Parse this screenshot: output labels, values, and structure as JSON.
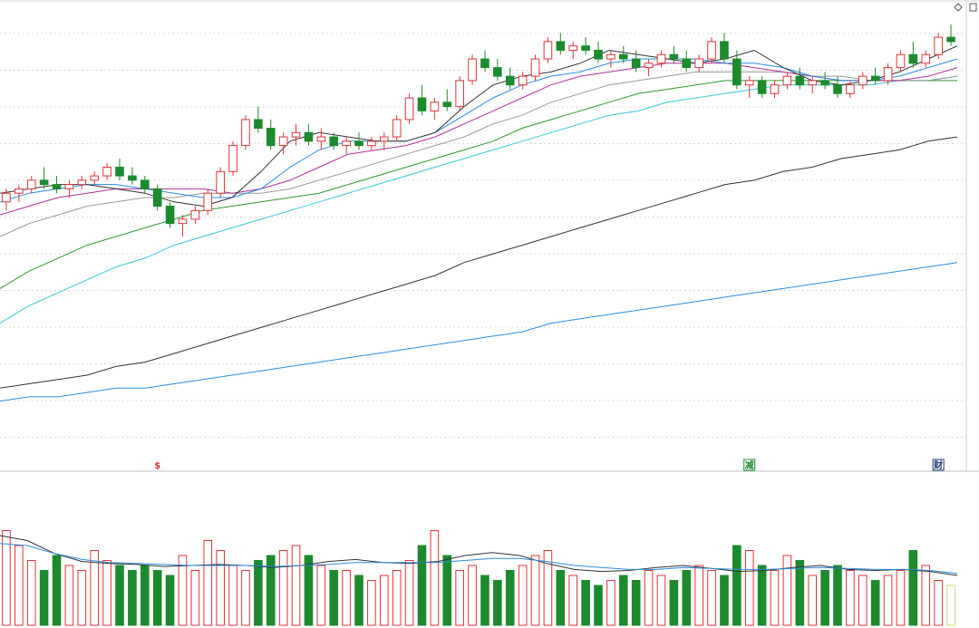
{
  "chart_data": [
    {
      "type": "candlestick",
      "panel": "price",
      "title": "",
      "grid": true,
      "ylim": [
        0,
        1
      ],
      "colors": {
        "up": "#e0333a",
        "down": "#1d8a2e",
        "ma5": "#333333",
        "ma10": "#2a8de0",
        "ma20": "#b0309a",
        "ma30": "#9a9a9a",
        "ma60": "#2e9a2e",
        "ma90": "#36c9d6",
        "ma250": "#333333",
        "ma500": "#2a8de0"
      },
      "ohlc": [
        [
          0.58,
          0.61,
          0.56,
          0.6
        ],
        [
          0.6,
          0.62,
          0.58,
          0.61
        ],
        [
          0.61,
          0.64,
          0.6,
          0.63
        ],
        [
          0.63,
          0.66,
          0.61,
          0.62
        ],
        [
          0.62,
          0.64,
          0.6,
          0.61
        ],
        [
          0.61,
          0.63,
          0.59,
          0.62
        ],
        [
          0.62,
          0.64,
          0.61,
          0.63
        ],
        [
          0.63,
          0.65,
          0.62,
          0.64
        ],
        [
          0.64,
          0.67,
          0.63,
          0.66
        ],
        [
          0.66,
          0.68,
          0.63,
          0.64
        ],
        [
          0.64,
          0.66,
          0.62,
          0.63
        ],
        [
          0.63,
          0.64,
          0.6,
          0.61
        ],
        [
          0.61,
          0.62,
          0.56,
          0.57
        ],
        [
          0.57,
          0.58,
          0.52,
          0.53
        ],
        [
          0.53,
          0.55,
          0.5,
          0.54
        ],
        [
          0.54,
          0.57,
          0.53,
          0.56
        ],
        [
          0.56,
          0.61,
          0.55,
          0.6
        ],
        [
          0.6,
          0.66,
          0.59,
          0.65
        ],
        [
          0.65,
          0.72,
          0.64,
          0.71
        ],
        [
          0.71,
          0.78,
          0.7,
          0.77
        ],
        [
          0.77,
          0.8,
          0.74,
          0.75
        ],
        [
          0.75,
          0.77,
          0.7,
          0.71
        ],
        [
          0.71,
          0.74,
          0.69,
          0.73
        ],
        [
          0.73,
          0.76,
          0.71,
          0.74
        ],
        [
          0.74,
          0.76,
          0.71,
          0.72
        ],
        [
          0.72,
          0.75,
          0.7,
          0.73
        ],
        [
          0.73,
          0.74,
          0.7,
          0.71
        ],
        [
          0.71,
          0.73,
          0.69,
          0.72
        ],
        [
          0.72,
          0.74,
          0.7,
          0.71
        ],
        [
          0.71,
          0.73,
          0.7,
          0.72
        ],
        [
          0.72,
          0.74,
          0.7,
          0.73
        ],
        [
          0.73,
          0.78,
          0.72,
          0.77
        ],
        [
          0.77,
          0.83,
          0.76,
          0.82
        ],
        [
          0.82,
          0.85,
          0.78,
          0.79
        ],
        [
          0.79,
          0.82,
          0.77,
          0.81
        ],
        [
          0.81,
          0.84,
          0.79,
          0.8
        ],
        [
          0.8,
          0.87,
          0.79,
          0.86
        ],
        [
          0.86,
          0.92,
          0.85,
          0.91
        ],
        [
          0.91,
          0.93,
          0.88,
          0.89
        ],
        [
          0.89,
          0.91,
          0.86,
          0.87
        ],
        [
          0.87,
          0.89,
          0.84,
          0.85
        ],
        [
          0.85,
          0.88,
          0.84,
          0.87
        ],
        [
          0.87,
          0.92,
          0.86,
          0.91
        ],
        [
          0.91,
          0.96,
          0.9,
          0.95
        ],
        [
          0.95,
          0.97,
          0.92,
          0.93
        ],
        [
          0.93,
          0.95,
          0.91,
          0.94
        ],
        [
          0.94,
          0.96,
          0.92,
          0.93
        ],
        [
          0.93,
          0.95,
          0.9,
          0.91
        ],
        [
          0.91,
          0.93,
          0.89,
          0.92
        ],
        [
          0.92,
          0.94,
          0.9,
          0.91
        ],
        [
          0.91,
          0.93,
          0.88,
          0.89
        ],
        [
          0.89,
          0.91,
          0.87,
          0.9
        ],
        [
          0.9,
          0.93,
          0.89,
          0.92
        ],
        [
          0.92,
          0.94,
          0.9,
          0.91
        ],
        [
          0.91,
          0.93,
          0.88,
          0.89
        ],
        [
          0.89,
          0.92,
          0.88,
          0.91
        ],
        [
          0.91,
          0.96,
          0.9,
          0.95
        ],
        [
          0.95,
          0.97,
          0.9,
          0.91
        ],
        [
          0.91,
          0.93,
          0.84,
          0.85
        ],
        [
          0.85,
          0.87,
          0.82,
          0.86
        ],
        [
          0.86,
          0.87,
          0.82,
          0.83
        ],
        [
          0.83,
          0.86,
          0.82,
          0.85
        ],
        [
          0.85,
          0.88,
          0.84,
          0.87
        ],
        [
          0.87,
          0.89,
          0.84,
          0.85
        ],
        [
          0.85,
          0.87,
          0.83,
          0.86
        ],
        [
          0.86,
          0.88,
          0.84,
          0.85
        ],
        [
          0.85,
          0.87,
          0.82,
          0.83
        ],
        [
          0.83,
          0.86,
          0.82,
          0.85
        ],
        [
          0.85,
          0.88,
          0.84,
          0.87
        ],
        [
          0.87,
          0.89,
          0.85,
          0.86
        ],
        [
          0.86,
          0.9,
          0.85,
          0.89
        ],
        [
          0.89,
          0.93,
          0.88,
          0.92
        ],
        [
          0.92,
          0.95,
          0.89,
          0.9
        ],
        [
          0.9,
          0.93,
          0.89,
          0.92
        ],
        [
          0.92,
          0.97,
          0.91,
          0.96
        ],
        [
          0.96,
          0.99,
          0.94,
          0.95
        ]
      ],
      "moving_averages": [
        {
          "label": "ma5",
          "values": [
            0.6,
            0.61,
            0.62,
            0.62,
            0.61,
            0.6,
            0.58,
            0.57,
            0.59,
            0.65,
            0.72,
            0.74,
            0.73,
            0.72,
            0.72,
            0.74,
            0.8,
            0.85,
            0.87,
            0.88,
            0.9,
            0.93,
            0.92,
            0.91,
            0.9,
            0.91,
            0.93,
            0.89,
            0.86,
            0.85,
            0.86,
            0.88,
            0.91,
            0.94
          ]
        },
        {
          "label": "ma10",
          "values": [
            0.58,
            0.6,
            0.61,
            0.62,
            0.62,
            0.61,
            0.6,
            0.59,
            0.59,
            0.61,
            0.66,
            0.7,
            0.72,
            0.72,
            0.72,
            0.74,
            0.78,
            0.82,
            0.85,
            0.87,
            0.88,
            0.9,
            0.91,
            0.91,
            0.91,
            0.9,
            0.9,
            0.89,
            0.87,
            0.86,
            0.86,
            0.87,
            0.89,
            0.91
          ]
        },
        {
          "label": "ma20",
          "values": [
            0.55,
            0.57,
            0.59,
            0.6,
            0.61,
            0.61,
            0.61,
            0.61,
            0.6,
            0.61,
            0.63,
            0.66,
            0.69,
            0.7,
            0.71,
            0.73,
            0.76,
            0.79,
            0.82,
            0.85,
            0.87,
            0.88,
            0.89,
            0.9,
            0.9,
            0.9,
            0.89,
            0.88,
            0.87,
            0.86,
            0.86,
            0.86,
            0.87,
            0.89
          ]
        },
        {
          "label": "ma30",
          "values": [
            0.5,
            0.53,
            0.55,
            0.57,
            0.58,
            0.59,
            0.59,
            0.6,
            0.6,
            0.6,
            0.61,
            0.63,
            0.65,
            0.67,
            0.69,
            0.71,
            0.73,
            0.76,
            0.78,
            0.81,
            0.83,
            0.85,
            0.86,
            0.87,
            0.88,
            0.88,
            0.88,
            0.88,
            0.87,
            0.87,
            0.86,
            0.86,
            0.86,
            0.87
          ]
        },
        {
          "label": "ma60",
          "values": [
            0.38,
            0.42,
            0.45,
            0.48,
            0.5,
            0.52,
            0.54,
            0.56,
            0.57,
            0.58,
            0.59,
            0.6,
            0.62,
            0.64,
            0.66,
            0.68,
            0.7,
            0.72,
            0.75,
            0.77,
            0.79,
            0.81,
            0.83,
            0.84,
            0.85,
            0.86,
            0.86,
            0.86,
            0.86,
            0.86,
            0.86,
            0.86,
            0.86,
            0.86
          ]
        },
        {
          "label": "ma90",
          "values": [
            0.3,
            0.34,
            0.37,
            0.4,
            0.43,
            0.45,
            0.48,
            0.5,
            0.52,
            0.54,
            0.56,
            0.58,
            0.6,
            0.62,
            0.64,
            0.66,
            0.68,
            0.7,
            0.72,
            0.74,
            0.76,
            0.78,
            0.79,
            0.81,
            0.82,
            0.83,
            0.84,
            0.85,
            0.85,
            0.85,
            0.85,
            0.86,
            0.86,
            0.87
          ]
        },
        {
          "label": "ma250",
          "values": [
            0.15,
            0.16,
            0.17,
            0.18,
            0.2,
            0.21,
            0.23,
            0.25,
            0.27,
            0.29,
            0.31,
            0.33,
            0.35,
            0.37,
            0.39,
            0.41,
            0.44,
            0.46,
            0.48,
            0.5,
            0.52,
            0.54,
            0.56,
            0.58,
            0.6,
            0.62,
            0.63,
            0.65,
            0.66,
            0.68,
            0.69,
            0.7,
            0.72,
            0.73
          ]
        },
        {
          "label": "ma500",
          "values": [
            0.12,
            0.13,
            0.13,
            0.14,
            0.15,
            0.15,
            0.16,
            0.17,
            0.18,
            0.19,
            0.2,
            0.21,
            0.22,
            0.23,
            0.24,
            0.25,
            0.26,
            0.27,
            0.28,
            0.3,
            0.31,
            0.32,
            0.33,
            0.34,
            0.35,
            0.36,
            0.37,
            0.38,
            0.39,
            0.4,
            0.41,
            0.42,
            0.43,
            0.44
          ]
        }
      ],
      "markers": [
        {
          "bar": 12,
          "text": "$",
          "color": "#e0333a",
          "boxed": false
        },
        {
          "bar": 59,
          "text": "减",
          "color": "#1d8a2e",
          "boxed": true
        },
        {
          "bar": 74,
          "text": "财",
          "color": "#1e3d7a",
          "boxed": true
        }
      ]
    },
    {
      "type": "bar",
      "panel": "volume",
      "title": "",
      "grid": false,
      "ylim": [
        0,
        1
      ],
      "values": [
        0.95,
        0.8,
        0.65,
        0.55,
        0.7,
        0.6,
        0.55,
        0.75,
        0.65,
        0.6,
        0.55,
        0.6,
        0.55,
        0.5,
        0.7,
        0.55,
        0.85,
        0.75,
        0.6,
        0.55,
        0.65,
        0.7,
        0.75,
        0.8,
        0.7,
        0.6,
        0.55,
        0.55,
        0.5,
        0.45,
        0.5,
        0.55,
        0.65,
        0.8,
        0.95,
        0.7,
        0.55,
        0.6,
        0.5,
        0.45,
        0.55,
        0.6,
        0.7,
        0.75,
        0.55,
        0.5,
        0.45,
        0.4,
        0.45,
        0.5,
        0.45,
        0.55,
        0.5,
        0.45,
        0.55,
        0.6,
        0.55,
        0.5,
        0.8,
        0.75,
        0.6,
        0.55,
        0.7,
        0.65,
        0.5,
        0.55,
        0.6,
        0.55,
        0.5,
        0.45,
        0.5,
        0.55,
        0.75,
        0.6,
        0.45,
        0.4
      ],
      "ma": [
        {
          "label": "vol_ma5",
          "values": [
            0.9,
            0.85,
            0.72,
            0.64,
            0.62,
            0.61,
            0.59,
            0.6,
            0.61,
            0.6,
            0.58,
            0.6,
            0.64,
            0.66,
            0.63,
            0.62,
            0.64,
            0.7,
            0.73,
            0.7,
            0.62,
            0.56,
            0.54,
            0.55,
            0.58,
            0.6,
            0.57,
            0.54,
            0.55,
            0.58,
            0.6,
            0.56,
            0.55,
            0.56,
            0.54,
            0.5
          ]
        },
        {
          "label": "vol_ma10",
          "values": [
            0.82,
            0.8,
            0.72,
            0.66,
            0.63,
            0.62,
            0.61,
            0.6,
            0.6,
            0.6,
            0.59,
            0.6,
            0.61,
            0.63,
            0.63,
            0.63,
            0.63,
            0.65,
            0.67,
            0.67,
            0.64,
            0.6,
            0.58,
            0.56,
            0.56,
            0.58,
            0.57,
            0.56,
            0.56,
            0.57,
            0.58,
            0.57,
            0.56,
            0.56,
            0.55,
            0.52
          ]
        }
      ],
      "highlight_last": true
    }
  ]
}
